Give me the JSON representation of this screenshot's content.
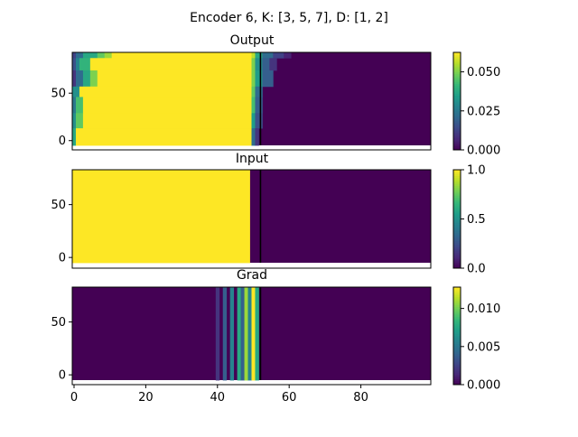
{
  "figure": {
    "suptitle": "Encoder 6, K: [3, 5, 7], D: [1, 2]"
  },
  "colors": {
    "viridis": [
      "#440154",
      "#482878",
      "#3e4989",
      "#31688e",
      "#26828e",
      "#1f9e89",
      "#35b779",
      "#6ece58",
      "#b5de2b",
      "#fde725"
    ],
    "marker_line": "#000000"
  },
  "chart_data": [
    {
      "type": "heatmap",
      "title": "Output",
      "xlim": [
        -0.5,
        99.5
      ],
      "ylim": [
        -5,
        93
      ],
      "ytick_values": [
        0,
        50
      ],
      "ytick_labels": [
        "0",
        "50"
      ],
      "marker_x": 52,
      "colorbar": {
        "vmin": 0,
        "vmax": 0.0625,
        "tick_values": [
          0,
          0.025,
          0.05
        ],
        "tick_labels": [
          "0.000",
          "0.025",
          "0.050"
        ]
      },
      "bands": [
        {
          "y": [
            87,
            93
          ],
          "cells": [
            [
              0,
              1,
              0.2
            ],
            [
              1,
              3,
              0.35
            ],
            [
              3,
              7,
              0.6
            ],
            [
              7,
              9,
              0.75
            ],
            [
              9,
              11,
              0.85
            ],
            [
              11,
              50,
              1
            ],
            [
              50,
              51,
              0.9
            ],
            [
              51,
              53,
              0.6
            ],
            [
              53,
              56,
              0.35
            ],
            [
              56,
              59,
              0.2
            ],
            [
              59,
              61,
              0.1
            ]
          ]
        },
        {
          "y": [
            74,
            87
          ],
          "cells": [
            [
              0,
              1,
              0.25
            ],
            [
              1,
              2,
              0.45
            ],
            [
              2,
              5,
              0.65
            ],
            [
              5,
              50,
              1
            ],
            [
              50,
              51,
              0.8
            ],
            [
              51,
              53,
              0.5
            ],
            [
              53,
              55,
              0.3
            ],
            [
              55,
              57,
              0.15
            ]
          ]
        },
        {
          "y": [
            57,
            74
          ],
          "cells": [
            [
              0,
              1,
              0.15
            ],
            [
              1,
              3,
              0.35
            ],
            [
              3,
              5,
              0.6
            ],
            [
              5,
              7,
              0.8
            ],
            [
              7,
              50,
              1
            ],
            [
              50,
              51,
              0.8
            ],
            [
              51,
              53,
              0.55
            ],
            [
              53,
              56,
              0.3
            ]
          ]
        },
        {
          "y": [
            46,
            57
          ],
          "cells": [
            [
              0,
              2,
              0.5
            ],
            [
              2,
              50,
              1
            ],
            [
              50,
              51,
              0.75
            ],
            [
              51,
              53,
              0.35
            ]
          ]
        },
        {
          "y": [
            29,
            46
          ],
          "cells": [
            [
              0,
              1,
              0.4
            ],
            [
              1,
              3,
              0.7
            ],
            [
              3,
              50,
              1
            ],
            [
              50,
              51,
              0.7
            ],
            [
              51,
              53,
              0.3
            ]
          ]
        },
        {
          "y": [
            13,
            29
          ],
          "cells": [
            [
              0,
              1,
              0.5
            ],
            [
              1,
              3,
              0.75
            ],
            [
              3,
              50,
              1
            ],
            [
              50,
              51,
              0.55
            ],
            [
              51,
              53,
              0.25
            ]
          ]
        },
        {
          "y": [
            -5,
            13
          ],
          "cells": [
            [
              0,
              1,
              0.6
            ],
            [
              1,
              50,
              1
            ],
            [
              50,
              51,
              0.35
            ],
            [
              51,
              52,
              0.15
            ]
          ]
        }
      ]
    },
    {
      "type": "heatmap",
      "title": "Input",
      "xlim": [
        -0.5,
        99.5
      ],
      "ylim": [
        -5,
        83
      ],
      "ytick_values": [
        0,
        50
      ],
      "ytick_labels": [
        "0",
        "50"
      ],
      "marker_x": 52,
      "colorbar": {
        "vmin": 0,
        "vmax": 1,
        "tick_values": [
          0,
          0.5,
          1
        ],
        "tick_labels": [
          "0.0",
          "0.5",
          "1.0"
        ]
      },
      "bands": [
        {
          "y": [
            -5,
            83
          ],
          "cells": [
            [
              0,
              49.5,
              1
            ]
          ]
        }
      ]
    },
    {
      "type": "heatmap",
      "title": "Grad",
      "xlim": [
        -0.5,
        99.5
      ],
      "ylim": [
        -5,
        83
      ],
      "ytick_values": [
        0,
        50
      ],
      "ytick_labels": [
        "0",
        "50"
      ],
      "xtick_values": [
        0,
        20,
        40,
        60,
        80
      ],
      "xtick_labels": [
        "0",
        "20",
        "40",
        "60",
        "80"
      ],
      "marker_x": 52,
      "colorbar": {
        "vmin": 0,
        "vmax": 0.0128,
        "tick_values": [
          0,
          0.005,
          0.01
        ],
        "tick_labels": [
          "0.000",
          "0.005",
          "0.010"
        ]
      },
      "bands": [
        {
          "y": [
            -5,
            83
          ],
          "cells": [
            [
              40,
              41,
              0.15
            ],
            [
              42,
              43,
              0.3
            ],
            [
              44,
              45,
              0.45
            ],
            [
              46,
              47,
              0.6
            ],
            [
              47,
              48,
              0.3
            ],
            [
              48,
              49,
              0.85
            ],
            [
              49,
              50,
              0.45
            ],
            [
              50,
              51,
              1
            ],
            [
              51,
              52,
              0.6
            ]
          ]
        }
      ]
    }
  ]
}
